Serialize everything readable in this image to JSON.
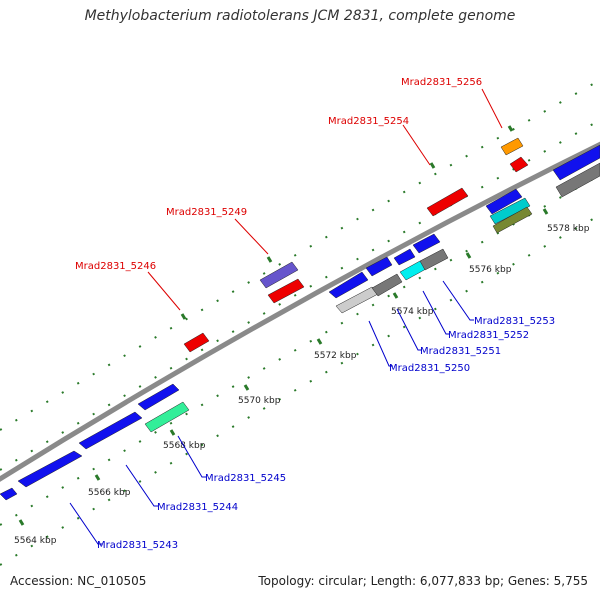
{
  "title": "Methylobacterium radiotolerans JCM 2831, complete genome",
  "footer": {
    "accession": "Accession: NC_010505",
    "summary": "Topology: circular; Length: 6,077,833 bp; Genes: 5,755"
  },
  "colors": {
    "backbone": "#8a8a8a",
    "tick": "#2a7a2a",
    "label_red": "#dd0000",
    "label_blue": "#0000cc"
  },
  "scale_labels": [
    "5564 kbp",
    "5566 kbp",
    "5568 kbp",
    "5570 kbp",
    "5572 kbp",
    "5574 kbp",
    "5576 kbp",
    "5578 kbp"
  ],
  "genes_top": [
    {
      "name": "Mrad2831_5246",
      "color": "red"
    },
    {
      "name": "Mrad2831_5249",
      "color": "red"
    },
    {
      "name": "Mrad2831_5254",
      "color": "red"
    },
    {
      "name": "Mrad2831_5256",
      "color": "red"
    }
  ],
  "genes_bottom": [
    {
      "name": "Mrad2831_5243",
      "color": "blue"
    },
    {
      "name": "Mrad2831_5244",
      "color": "blue"
    },
    {
      "name": "Mrad2831_5245",
      "color": "blue"
    },
    {
      "name": "Mrad2831_5250",
      "color": "blue"
    },
    {
      "name": "Mrad2831_5251",
      "color": "blue"
    },
    {
      "name": "Mrad2831_5252",
      "color": "blue"
    },
    {
      "name": "Mrad2831_5253",
      "color": "blue"
    }
  ]
}
